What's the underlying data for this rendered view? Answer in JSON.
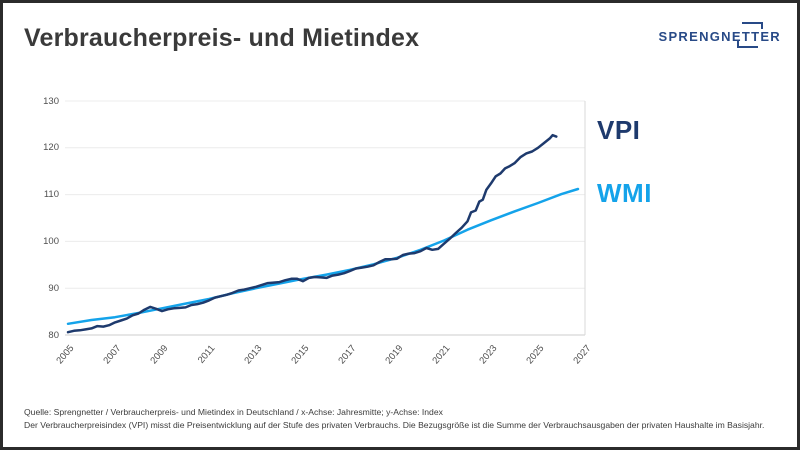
{
  "page": {
    "title": "Verbraucherpreis- und Mietindex"
  },
  "logo": {
    "part1": "SPRENGNE",
    "part2": "TT",
    "part3": "ER",
    "color": "#284a87"
  },
  "footer": {
    "line1": "Quelle: Sprengnetter / Verbraucherpreis- und Mietindex in Deutschland / x-Achse: Jahresmitte; y-Achse: Index",
    "line2": "Der Verbraucherpreisindex (VPI) misst die Preisentwicklung auf der Stufe des privaten Verbrauchs. Die Bezugsgröße ist die Summe der Verbrauchsausgaben der privaten Haushalte im Basisjahr."
  },
  "colors": {
    "vpi": "#1e3a6d",
    "wmi": "#14a3ea",
    "grid": "#ececec",
    "axis": "#cccccc",
    "right_border": "#d9d9d9",
    "tick_text": "#4f4f4f",
    "frame": "#2b2b2b"
  },
  "chart_data": {
    "type": "line",
    "title": "Verbraucherpreis- und Mietindex",
    "xlabel": "Jahresmitte",
    "ylabel": "Index",
    "xlim": [
      2005,
      2027
    ],
    "ylim": [
      80,
      130
    ],
    "x_ticks": [
      2005,
      2007,
      2009,
      2011,
      2013,
      2015,
      2017,
      2019,
      2021,
      2023,
      2025,
      2027
    ],
    "y_ticks": [
      80,
      90,
      100,
      110,
      120,
      130
    ],
    "grid": true,
    "legend_position": "right",
    "series": [
      {
        "name": "VPI",
        "color": "#1e3a6d",
        "points": [
          [
            2005.0,
            80.6
          ],
          [
            2005.25,
            80.9
          ],
          [
            2005.5,
            81.0
          ],
          [
            2005.75,
            81.2
          ],
          [
            2006.0,
            81.4
          ],
          [
            2006.25,
            81.9
          ],
          [
            2006.5,
            81.8
          ],
          [
            2006.75,
            82.1
          ],
          [
            2007.0,
            82.7
          ],
          [
            2007.25,
            83.1
          ],
          [
            2007.5,
            83.5
          ],
          [
            2007.75,
            84.2
          ],
          [
            2008.0,
            84.6
          ],
          [
            2008.25,
            85.4
          ],
          [
            2008.5,
            86.0
          ],
          [
            2008.75,
            85.6
          ],
          [
            2009.0,
            85.1
          ],
          [
            2009.25,
            85.5
          ],
          [
            2009.5,
            85.7
          ],
          [
            2009.75,
            85.8
          ],
          [
            2010.0,
            85.9
          ],
          [
            2010.25,
            86.4
          ],
          [
            2010.5,
            86.6
          ],
          [
            2010.75,
            86.9
          ],
          [
            2011.0,
            87.4
          ],
          [
            2011.25,
            88.0
          ],
          [
            2011.5,
            88.3
          ],
          [
            2011.75,
            88.6
          ],
          [
            2012.0,
            89.0
          ],
          [
            2012.25,
            89.5
          ],
          [
            2012.5,
            89.7
          ],
          [
            2012.75,
            90.0
          ],
          [
            2013.0,
            90.3
          ],
          [
            2013.25,
            90.7
          ],
          [
            2013.5,
            91.1
          ],
          [
            2013.75,
            91.2
          ],
          [
            2014.0,
            91.3
          ],
          [
            2014.25,
            91.7
          ],
          [
            2014.5,
            92.0
          ],
          [
            2014.75,
            92.0
          ],
          [
            2015.0,
            91.5
          ],
          [
            2015.25,
            92.2
          ],
          [
            2015.5,
            92.4
          ],
          [
            2015.75,
            92.3
          ],
          [
            2016.0,
            92.2
          ],
          [
            2016.25,
            92.7
          ],
          [
            2016.5,
            92.9
          ],
          [
            2016.75,
            93.2
          ],
          [
            2017.0,
            93.7
          ],
          [
            2017.25,
            94.2
          ],
          [
            2017.5,
            94.4
          ],
          [
            2017.75,
            94.6
          ],
          [
            2018.0,
            94.9
          ],
          [
            2018.25,
            95.6
          ],
          [
            2018.5,
            96.2
          ],
          [
            2018.75,
            96.2
          ],
          [
            2019.0,
            96.3
          ],
          [
            2019.25,
            97.1
          ],
          [
            2019.5,
            97.4
          ],
          [
            2019.75,
            97.5
          ],
          [
            2020.0,
            97.9
          ],
          [
            2020.25,
            98.6
          ],
          [
            2020.5,
            98.2
          ],
          [
            2020.75,
            98.4
          ],
          [
            2021.0,
            99.5
          ],
          [
            2021.25,
            100.6
          ],
          [
            2021.5,
            101.8
          ],
          [
            2021.75,
            102.9
          ],
          [
            2022.0,
            104.3
          ],
          [
            2022.15,
            106.2
          ],
          [
            2022.35,
            106.6
          ],
          [
            2022.5,
            108.5
          ],
          [
            2022.65,
            108.9
          ],
          [
            2022.8,
            111.0
          ],
          [
            2023.0,
            112.4
          ],
          [
            2023.2,
            113.9
          ],
          [
            2023.4,
            114.5
          ],
          [
            2023.6,
            115.6
          ],
          [
            2023.8,
            116.1
          ],
          [
            2024.0,
            116.7
          ],
          [
            2024.25,
            118.0
          ],
          [
            2024.5,
            118.8
          ],
          [
            2024.75,
            119.2
          ],
          [
            2025.0,
            120.0
          ],
          [
            2025.25,
            121.0
          ],
          [
            2025.5,
            122.0
          ],
          [
            2025.62,
            122.7
          ],
          [
            2025.78,
            122.4
          ]
        ]
      },
      {
        "name": "WMI",
        "color": "#14a3ea",
        "points": [
          [
            2005.0,
            82.4
          ],
          [
            2006.0,
            83.2
          ],
          [
            2007.0,
            83.8
          ],
          [
            2008.0,
            84.7
          ],
          [
            2009.0,
            85.7
          ],
          [
            2010.0,
            86.7
          ],
          [
            2011.0,
            87.7
          ],
          [
            2012.0,
            88.9
          ],
          [
            2013.0,
            90.0
          ],
          [
            2014.0,
            91.0
          ],
          [
            2015.0,
            92.0
          ],
          [
            2016.0,
            92.9
          ],
          [
            2017.0,
            93.9
          ],
          [
            2018.0,
            95.1
          ],
          [
            2019.0,
            96.5
          ],
          [
            2020.0,
            98.2
          ],
          [
            2021.0,
            100.2
          ],
          [
            2022.0,
            102.5
          ],
          [
            2023.0,
            104.5
          ],
          [
            2024.0,
            106.4
          ],
          [
            2025.0,
            108.2
          ],
          [
            2026.0,
            110.1
          ],
          [
            2026.7,
            111.2
          ]
        ]
      }
    ]
  }
}
